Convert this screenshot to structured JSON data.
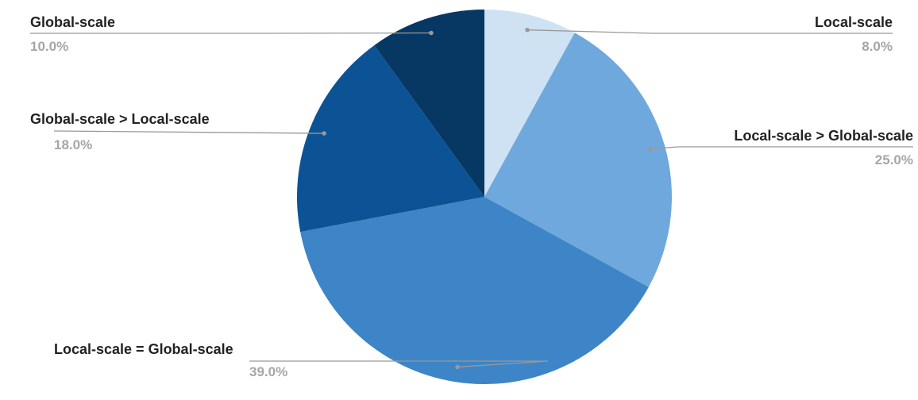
{
  "chart_data": {
    "type": "pie",
    "title": "",
    "slices": [
      {
        "label": "Local-scale",
        "value": 8.0,
        "display": "8.0%",
        "color": "#cfe2f3"
      },
      {
        "label": "Local-scale > Global-scale",
        "value": 25.0,
        "display": "25.0%",
        "color": "#6fa8dc"
      },
      {
        "label": "Local-scale = Global-scale",
        "value": 39.0,
        "display": "39.0%",
        "color": "#3d85c6"
      },
      {
        "label": "Global-scale > Local-scale",
        "value": 18.0,
        "display": "18.0%",
        "color": "#0b5394"
      },
      {
        "label": "Global-scale",
        "value": 10.0,
        "display": "10.0%",
        "color": "#073763"
      }
    ],
    "start_angle_deg": 0,
    "direction": "clockwise",
    "legend": "none",
    "leader_line_color": "#999999"
  }
}
